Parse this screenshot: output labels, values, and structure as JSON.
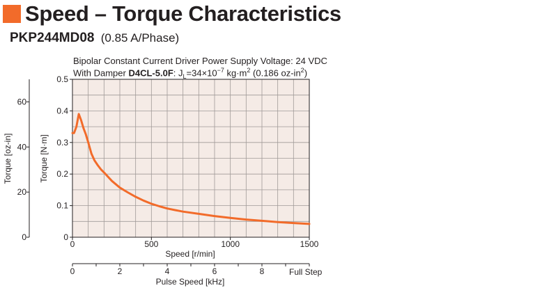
{
  "header": {
    "title": "Speed – Torque Characteristics",
    "model": "PKP244MD08",
    "rating": "(0.85 A/Phase)"
  },
  "conditions": {
    "line1": "Bipolar Constant Current Driver  Power Supply Voltage: 24 VDC",
    "line2_prefix": "With Damper ",
    "damper_model": "D4CL-5.0F",
    "line2_suffix_a": ": J",
    "line2_sub": "L",
    "line2_suffix_b": "=34×10",
    "line2_exp": "−7",
    "line2_suffix_c": " kg·m",
    "line2_exp2": "2",
    "line2_suffix_d": " (0.186 oz-in",
    "line2_exp3": "2",
    "line2_suffix_e": ")"
  },
  "colors": {
    "accent": "#f26b2a",
    "plot_bg": "#f5ebe6",
    "grid": "#a09a98",
    "curve": "#f26b2a"
  },
  "chart_data": {
    "type": "line",
    "xlabel": "Speed [r/min]",
    "ylabel": "Torque [N·m]",
    "ylabel_secondary": "Torque [oz-in]",
    "x2label": "Pulse Speed [kHz]",
    "x2_unit_note": "Full Step",
    "xlim": [
      0,
      1500
    ],
    "ylim": [
      0,
      0.5
    ],
    "y2lim": [
      0,
      70
    ],
    "x2lim": [
      0,
      10
    ],
    "x_ticks": [
      0,
      500,
      1000,
      1500
    ],
    "y_ticks": [
      0,
      0.1,
      0.2,
      0.3,
      0.4,
      0.5
    ],
    "y_tick_labels": [
      "0",
      "0.1",
      "0.2",
      "0.3",
      "0.4",
      "0.5"
    ],
    "y2_ticks": [
      0,
      20,
      40,
      60
    ],
    "x2_ticks": [
      0,
      2,
      4,
      6,
      8
    ],
    "grid": true,
    "series": [
      {
        "x": [
          0,
          10,
          25,
          40,
          55,
          70,
          85,
          100,
          120,
          140,
          160,
          180,
          200,
          250,
          300,
          350,
          400,
          450,
          500,
          550,
          600,
          650,
          700,
          800,
          900,
          1000,
          1100,
          1200,
          1300,
          1400,
          1500
        ],
        "y": [
          0.33,
          0.33,
          0.35,
          0.39,
          0.37,
          0.345,
          0.325,
          0.3,
          0.265,
          0.243,
          0.228,
          0.215,
          0.205,
          0.178,
          0.157,
          0.142,
          0.128,
          0.116,
          0.106,
          0.098,
          0.091,
          0.086,
          0.081,
          0.074,
          0.067,
          0.061,
          0.056,
          0.052,
          0.048,
          0.045,
          0.042
        ]
      }
    ]
  }
}
